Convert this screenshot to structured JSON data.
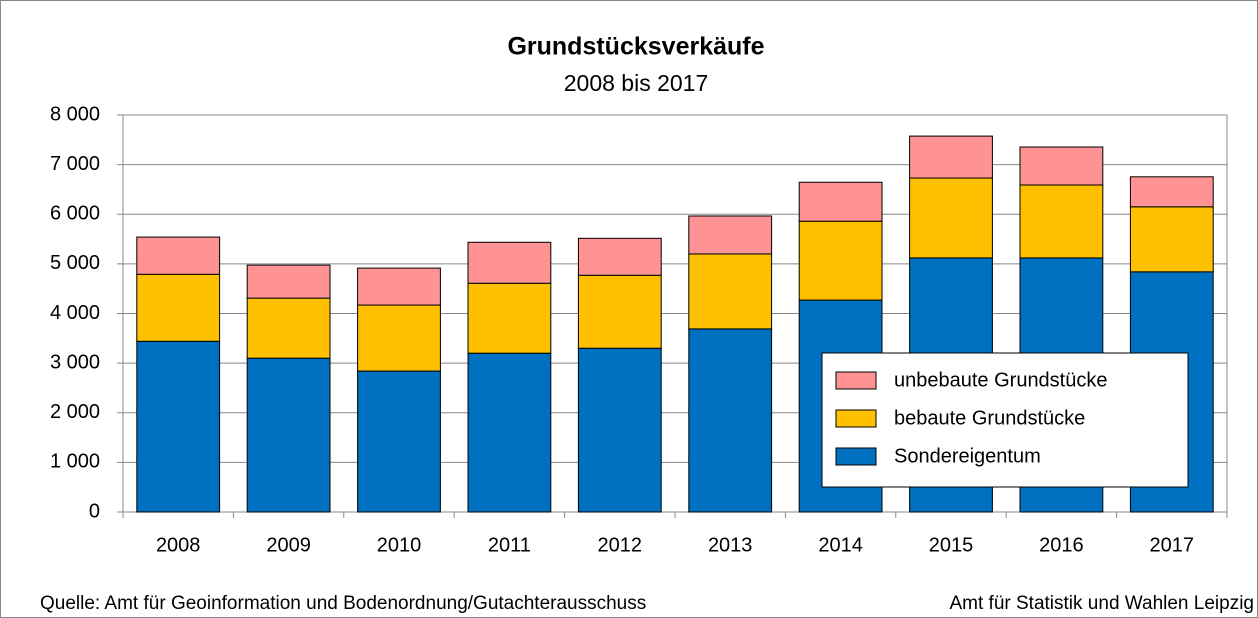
{
  "chart_data": {
    "type": "stacked_bar",
    "title": "Grundstücksverkäufe",
    "subtitle": "2008 bis 2017",
    "categories": [
      "2008",
      "2009",
      "2010",
      "2011",
      "2012",
      "2013",
      "2014",
      "2015",
      "2016",
      "2017"
    ],
    "series": [
      {
        "name": "Sondereigentum",
        "color": "#0070c0",
        "values": [
          3440,
          3100,
          2840,
          3200,
          3300,
          3690,
          4270,
          5120,
          5120,
          4840
        ]
      },
      {
        "name": "bebaute Grundstücke",
        "color": "#ffc000",
        "values": [
          1350,
          1210,
          1330,
          1410,
          1470,
          1510,
          1590,
          1610,
          1470,
          1310
        ]
      },
      {
        "name": "unbebaute Grundstücke",
        "color": "#ff9393",
        "values": [
          750,
          665,
          745,
          825,
          745,
          765,
          785,
          845,
          765,
          605
        ]
      }
    ],
    "ylim": [
      0,
      8000
    ],
    "yticks": [
      0,
      {
        "value": 1000,
        "label": "1 000"
      },
      {
        "value": 2000,
        "label": "2 000"
      },
      {
        "value": 3000,
        "label": "3 000"
      },
      {
        "value": 4000,
        "label": "4 000"
      },
      {
        "value": 5000,
        "label": "5 000"
      },
      {
        "value": 6000,
        "label": "6 000"
      },
      {
        "value": 7000,
        "label": "7 000"
      },
      {
        "value": 8000,
        "label": "8 000"
      }
    ],
    "grid": true,
    "legend": "right",
    "source": "Quelle: Amt für Geoinformation und Bodenordnung/Gutachterausschuss",
    "credit": "Amt für Statistik und Wahlen Leipzig"
  }
}
